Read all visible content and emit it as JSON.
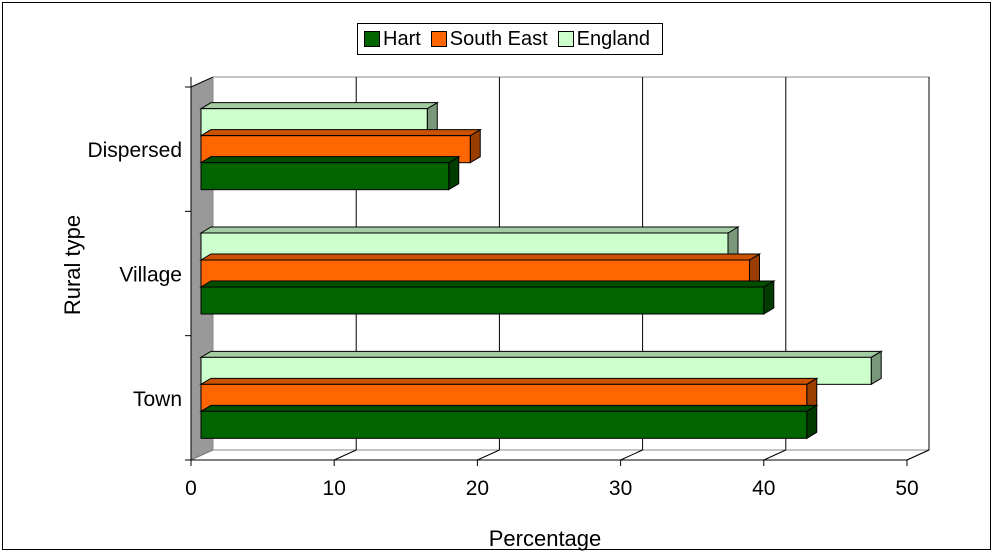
{
  "chart_data": {
    "type": "bar",
    "orientation": "horizontal",
    "title": "",
    "xlabel": "Percentage",
    "ylabel": "Rural type",
    "categories": [
      "Town",
      "Village",
      "Dispersed"
    ],
    "series": [
      {
        "name": "Hart",
        "values": [
          43,
          40,
          18
        ],
        "color": "#006400"
      },
      {
        "name": "South East",
        "values": [
          43,
          39,
          19.5
        ],
        "color": "#ff6600"
      },
      {
        "name": "England",
        "values": [
          47.5,
          37.5,
          16.5
        ],
        "color": "#ccffcc"
      }
    ],
    "xlim": [
      0,
      50
    ],
    "xticks": [
      "0",
      "10",
      "20",
      "30",
      "40",
      "50"
    ],
    "grid": true,
    "legend_position": "top"
  }
}
